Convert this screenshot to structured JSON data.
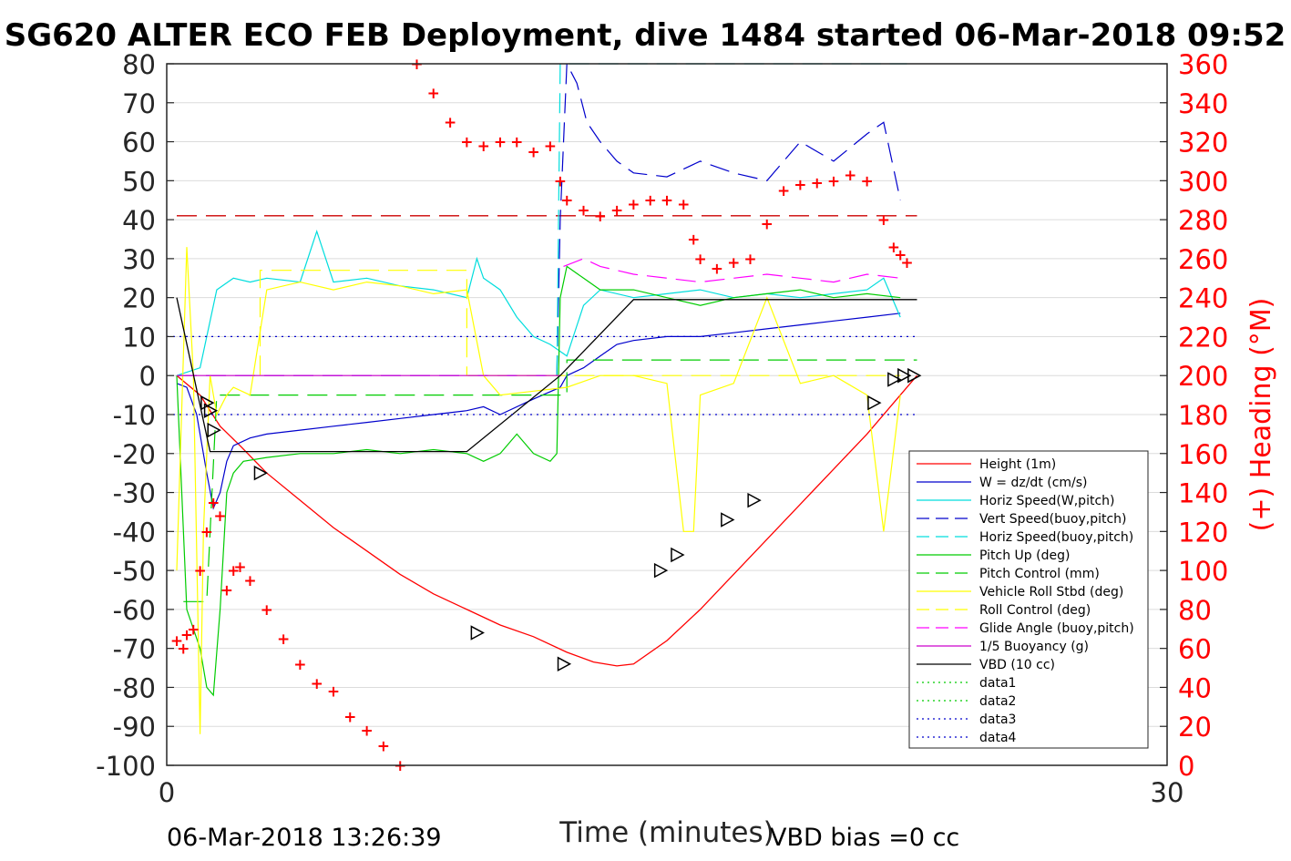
{
  "chart_data": {
    "type": "line",
    "title": "SG620 ALTER ECO FEB Deployment, dive 1484 started 06-Mar-2018 09:52",
    "xlabel": "Time (minutes)",
    "ylabel_right": "(+) Heading (°M)",
    "footer_left": "06-Mar-2018 13:26:39",
    "footer_right": "VBD bias =0 cc",
    "xlim": [
      0,
      30
    ],
    "ylim": [
      -100,
      80
    ],
    "ylim_right": [
      0,
      360
    ],
    "x_ticks": [
      "0",
      "30"
    ],
    "y_ticks": [
      "80",
      "70",
      "60",
      "50",
      "40",
      "30",
      "20",
      "10",
      "0",
      "-10",
      "-20",
      "-30",
      "-40",
      "-50",
      "-60",
      "-70",
      "-80",
      "-90",
      "-100"
    ],
    "y_ticks_right": [
      "360",
      "340",
      "320",
      "300",
      "280",
      "260",
      "240",
      "220",
      "200",
      "180",
      "160",
      "140",
      "120",
      "100",
      "80",
      "60",
      "40",
      "20",
      "0"
    ],
    "grid": true,
    "legend_position": "bottom-right",
    "series": [
      {
        "name": "Height (1m)",
        "color": "#ff0000",
        "style": "solid",
        "x": [
          0.3,
          1.0,
          1.6,
          2.2,
          3.0,
          4.0,
          5.0,
          6.0,
          7.0,
          8.0,
          9.0,
          10.0,
          11.0,
          12.0,
          12.8,
          13.5,
          14.0,
          15.0,
          16.0,
          17.0,
          18.0,
          19.0,
          20.0,
          21.0,
          22.0,
          22.5
        ],
        "y": [
          0,
          -5,
          -13,
          -18,
          -25,
          -32,
          -39,
          -45,
          -51,
          -56,
          -60,
          -64,
          -67,
          -71,
          -73.5,
          -74.5,
          -74,
          -68,
          -60,
          -51,
          -42,
          -33,
          -24,
          -15,
          -5,
          0
        ]
      },
      {
        "name": "W = dz/dt (cm/s)",
        "color": "#0000cc",
        "style": "solid",
        "x": [
          0.3,
          0.6,
          0.9,
          1.2,
          1.4,
          1.6,
          1.8,
          2.0,
          2.5,
          3.0,
          4.0,
          5.0,
          6.0,
          7.0,
          8.0,
          9.0,
          9.5,
          10.0,
          11.0,
          11.8,
          12.0,
          12.5,
          13.0,
          13.5,
          14.0,
          15.0,
          16.0,
          17.0,
          18.0,
          19.0,
          20.0,
          21.0,
          22.0
        ],
        "y": [
          -2,
          -3,
          -10,
          -25,
          -34,
          -30,
          -22,
          -18,
          -16,
          -15,
          -14,
          -13,
          -12,
          -11,
          -10,
          -9,
          -8,
          -10,
          -6,
          -3,
          0,
          2,
          5,
          8,
          9,
          10,
          10,
          11,
          12,
          13,
          14,
          15,
          16
        ]
      },
      {
        "name": "Horiz Speed(W,pitch)",
        "color": "#00dddd",
        "style": "solid",
        "x": [
          0.3,
          1.0,
          1.5,
          2.0,
          2.5,
          3.0,
          4.0,
          4.5,
          5.0,
          6.0,
          7.0,
          8.0,
          9.0,
          9.3,
          9.5,
          10.0,
          10.5,
          11.0,
          11.5,
          12.0,
          12.5,
          13.0,
          14.0,
          15.0,
          16.0,
          17.0,
          18.0,
          19.0,
          20.0,
          21.0,
          21.5,
          22.0
        ],
        "y": [
          0,
          2,
          22,
          25,
          24,
          25,
          24,
          37,
          24,
          25,
          23,
          22,
          20,
          30,
          25,
          22,
          15,
          10,
          8,
          5,
          18,
          22,
          20,
          21,
          22,
          20,
          21,
          20,
          21,
          22,
          25,
          15
        ]
      },
      {
        "name": "Vert Speed(buoy,pitch)",
        "color": "#0000cc",
        "style": "dashed",
        "x": [
          11.7,
          11.8,
          12.0,
          12.3,
          12.6,
          13.0,
          13.5,
          14.0,
          15.0,
          16.0,
          17.0,
          18.0,
          19.0,
          20.0,
          21.0,
          21.5,
          22.0
        ],
        "y": [
          0,
          40,
          90,
          75,
          65,
          60,
          55,
          52,
          51,
          55,
          52,
          50,
          60,
          55,
          62,
          65,
          45
        ]
      },
      {
        "name": "Horiz Speed(buoy,pitch)",
        "color": "#00dddd",
        "style": "dashed",
        "x": [
          11.7,
          11.8,
          12.0,
          21.8,
          22.0,
          22.2
        ],
        "y": [
          0,
          80,
          80,
          80,
          80,
          80
        ]
      },
      {
        "name": "Pitch Up (deg)",
        "color": "#00cc00",
        "style": "solid",
        "x": [
          0.3,
          0.6,
          1.0,
          1.2,
          1.4,
          1.6,
          1.8,
          2.0,
          2.3,
          3.0,
          4.0,
          5.0,
          6.0,
          7.0,
          8.0,
          9.0,
          9.5,
          10.0,
          10.5,
          11.0,
          11.5,
          11.7,
          11.8,
          12.0,
          12.5,
          13.0,
          14.0,
          15.0,
          16.0,
          17.0,
          18.0,
          19.0,
          20.0,
          21.0,
          22.0
        ],
        "y": [
          0,
          -60,
          -70,
          -80,
          -82,
          -60,
          -30,
          -25,
          -22,
          -21,
          -20,
          -20,
          -19,
          -20,
          -19,
          -20,
          -22,
          -20,
          -15,
          -20,
          -22,
          -20,
          20,
          28,
          25,
          22,
          22,
          20,
          18,
          20,
          21,
          22,
          20,
          21,
          20
        ]
      },
      {
        "name": "Pitch Control (mm)",
        "color": "#00cc00",
        "style": "dashed",
        "x": [
          0.5,
          1.2,
          1.5,
          12.0,
          12.0,
          22.5
        ],
        "y": [
          -58,
          -58,
          -5,
          -5,
          4,
          4
        ]
      },
      {
        "name": "Vehicle Roll Stbd (deg)",
        "color": "#ffff00",
        "style": "solid",
        "x": [
          0.3,
          0.6,
          0.8,
          1.0,
          1.1,
          1.3,
          1.5,
          1.8,
          2.0,
          2.5,
          3.0,
          4.0,
          5.0,
          6.0,
          7.0,
          8.0,
          9.0,
          9.5,
          10.0,
          11.0,
          12.0,
          13.0,
          14.0,
          15.0,
          15.5,
          15.8,
          16.0,
          17.0,
          18.0,
          19.0,
          20.0,
          21.0,
          21.5,
          22.0
        ],
        "y": [
          -50,
          33,
          0,
          -92,
          -40,
          0,
          -10,
          -5,
          -3,
          -5,
          22,
          24,
          22,
          24,
          23,
          21,
          22,
          0,
          -5,
          -4,
          -3,
          0,
          0,
          -2,
          -40,
          -40,
          -5,
          -2,
          20,
          -2,
          0,
          -5,
          -40,
          -5
        ]
      },
      {
        "name": "Roll Control (deg)",
        "color": "#ffff00",
        "style": "dashed",
        "x": [
          2.8,
          2.8,
          9.0,
          9.0,
          22.0
        ],
        "y": [
          0,
          27,
          27,
          0,
          0
        ]
      },
      {
        "name": "Glide Angle (buoy,pitch)",
        "color": "#ff00ff",
        "style": "dashed",
        "x": [
          11.9,
          12.5,
          13.0,
          14.0,
          15.0,
          16.0,
          17.0,
          18.0,
          19.0,
          20.0,
          21.0,
          22.0
        ],
        "y": [
          28,
          30,
          28,
          26,
          25,
          24,
          25,
          26,
          25,
          24,
          26,
          25
        ]
      },
      {
        "name": "1/5 Buoyancy (g)",
        "color": "#cc00cc",
        "style": "solid",
        "x": [
          0.3,
          11.8
        ],
        "y": [
          0,
          0
        ]
      },
      {
        "name": "VBD (10 cc)",
        "color": "#000000",
        "style": "solid",
        "x": [
          0.3,
          1.3,
          9.0,
          11.8,
          14.0,
          22.5
        ],
        "y": [
          20,
          -19.5,
          -19.5,
          0,
          19.5,
          19.5
        ]
      },
      {
        "name": "data1",
        "color": "#00cc00",
        "style": "dotted",
        "x": [],
        "y": []
      },
      {
        "name": "data2",
        "color": "#00cc00",
        "style": "dotted",
        "x": [],
        "y": []
      },
      {
        "name": "data3",
        "color": "#0000cc",
        "style": "dotted",
        "x": [
          0,
          22.5
        ],
        "y": [
          10,
          10
        ]
      },
      {
        "name": "data4",
        "color": "#0000cc",
        "style": "dotted",
        "x": [
          0,
          22.5
        ],
        "y": [
          -10,
          -10
        ]
      }
    ],
    "reference_lines": [
      {
        "color": "#cc0000",
        "style": "dashed",
        "x": [
          0.3,
          22.5
        ],
        "y": [
          41,
          41
        ]
      },
      {
        "color": "#9933ff",
        "style": "dashed",
        "x": [
          0.3,
          11.8
        ],
        "y": [
          0,
          0
        ]
      }
    ],
    "heading": {
      "axis": "right",
      "color": "#ff0000",
      "x": [
        0.3,
        0.5,
        0.6,
        0.8,
        1.0,
        1.2,
        1.4,
        1.6,
        1.8,
        2.0,
        2.2,
        2.5,
        3.0,
        3.5,
        4.0,
        4.5,
        5.0,
        5.5,
        6.0,
        6.5,
        7.0,
        7.5,
        8.0,
        8.5,
        9.0,
        9.5,
        10.0,
        10.5,
        11.0,
        11.5,
        11.8,
        12.0,
        12.5,
        13.0,
        13.5,
        14.0,
        14.5,
        15.0,
        15.5,
        15.8,
        16.0,
        16.5,
        17.0,
        17.5,
        18.0,
        18.5,
        19.0,
        19.5,
        20.0,
        20.5,
        21.0,
        21.5,
        21.8,
        22.0,
        22.2
      ],
      "y": [
        64,
        60,
        67,
        70,
        100,
        120,
        135,
        128,
        90,
        100,
        102,
        95,
        80,
        65,
        52,
        42,
        38,
        25,
        18,
        10,
        0,
        360,
        345,
        330,
        320,
        318,
        320,
        320,
        315,
        318,
        300,
        290,
        285,
        282,
        285,
        288,
        290,
        290,
        288,
        270,
        260,
        255,
        258,
        260,
        278,
        295,
        298,
        299,
        300,
        303,
        300,
        280,
        266,
        262,
        258
      ]
    },
    "markers": {
      "shape": "triangle",
      "color": "#000000",
      "x": [
        1.2,
        1.3,
        1.4,
        2.8,
        9.3,
        11.9,
        14.8,
        15.3,
        16.8,
        17.6,
        21.2,
        21.8,
        22.1,
        22.4
      ],
      "y": [
        -7,
        -9,
        -14,
        -25,
        -66,
        -74,
        -50,
        -46,
        -37,
        -32,
        -7,
        -1,
        0,
        0
      ]
    }
  }
}
